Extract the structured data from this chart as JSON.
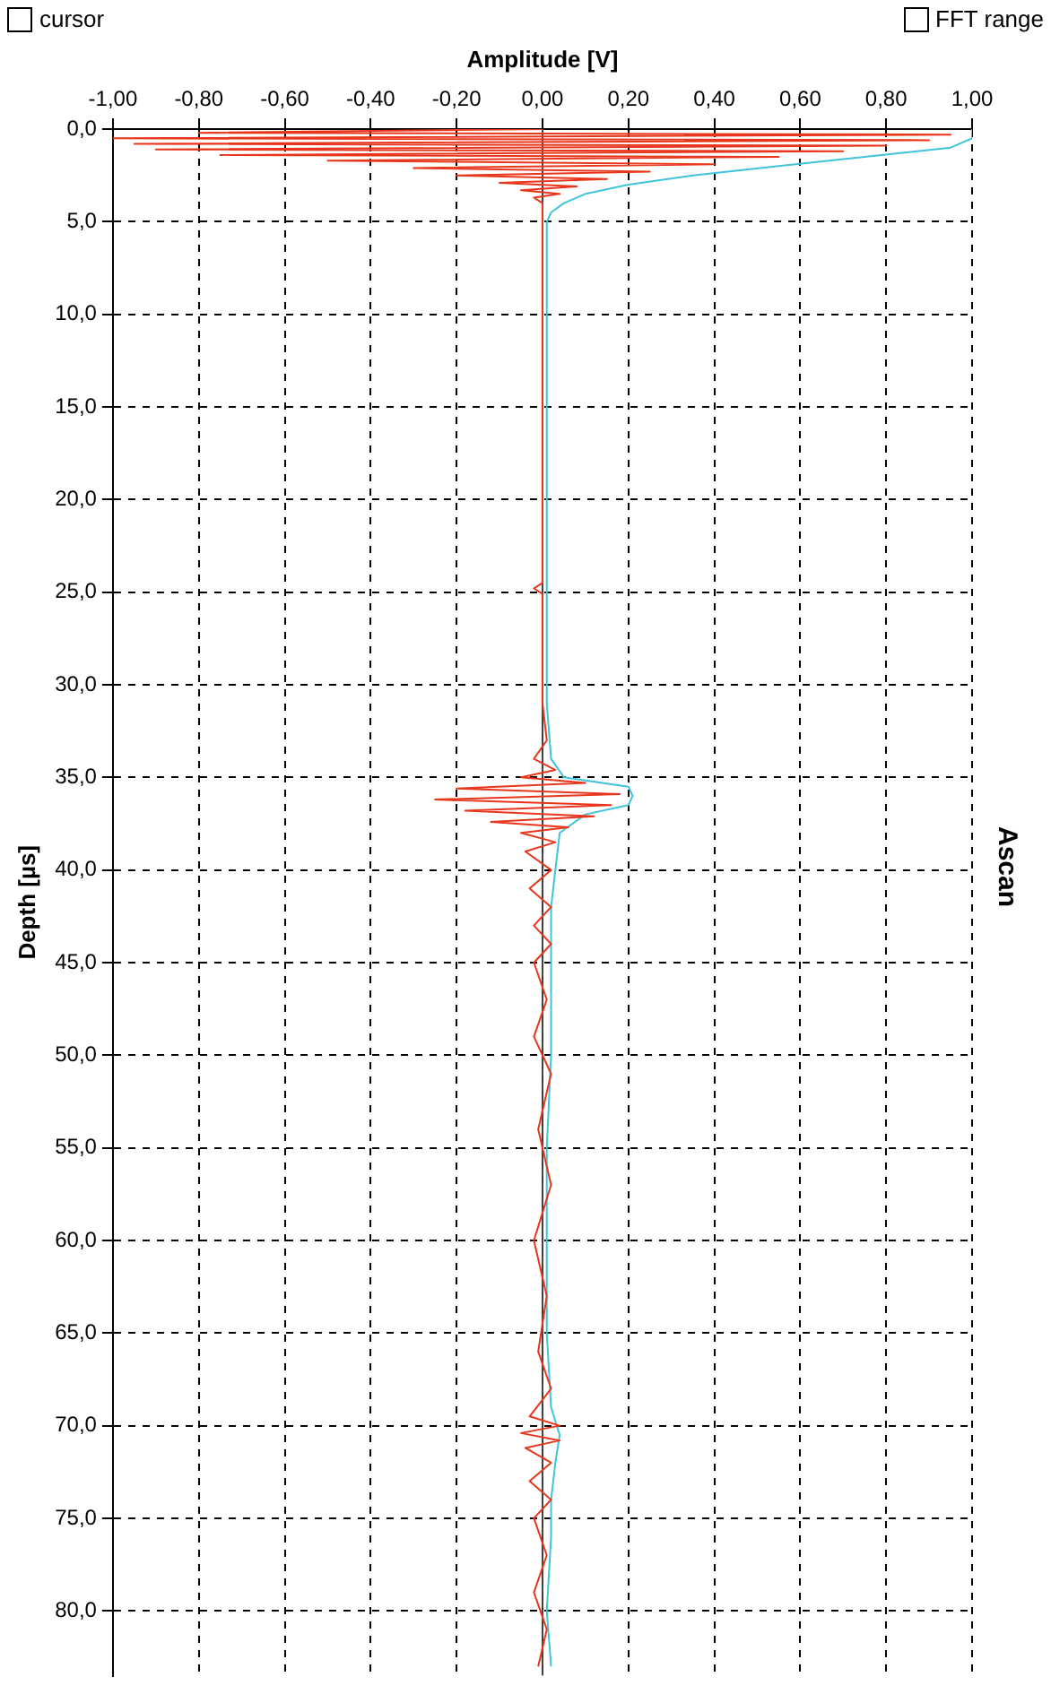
{
  "chart_data": {
    "type": "line",
    "title": "Ascan",
    "xlabel": "Amplitude [V]",
    "ylabel": "Depth [µs]",
    "annotations": [
      "cursor",
      "FFT range"
    ],
    "ylim": [
      83.5,
      0
    ],
    "yticks": [
      {
        "value": 0,
        "label": "0,0"
      },
      {
        "value": 5,
        "label": "5,0"
      },
      {
        "value": 10,
        "label": "10,0"
      },
      {
        "value": 15,
        "label": "15,0"
      },
      {
        "value": 20,
        "label": "20,0"
      },
      {
        "value": 25,
        "label": "25,0"
      },
      {
        "value": 30,
        "label": "30,0"
      },
      {
        "value": 35,
        "label": "35,0"
      },
      {
        "value": 40,
        "label": "40,0"
      },
      {
        "value": 45,
        "label": "45,0"
      },
      {
        "value": 50,
        "label": "50,0"
      },
      {
        "value": 55,
        "label": "55,0"
      },
      {
        "value": 60,
        "label": "60,0"
      },
      {
        "value": 65,
        "label": "65,0"
      },
      {
        "value": 70,
        "label": "70,0"
      },
      {
        "value": 75,
        "label": "75,0"
      },
      {
        "value": 80,
        "label": "80,0"
      }
    ],
    "xlim": [
      -1,
      1
    ],
    "xticks": [
      {
        "value": -1,
        "label": "-1,00"
      },
      {
        "value": -0.8,
        "label": "-0,80"
      },
      {
        "value": -0.6,
        "label": "-0,60"
      },
      {
        "value": -0.4,
        "label": "-0,40"
      },
      {
        "value": -0.2,
        "label": "-0,20"
      },
      {
        "value": 0,
        "label": "0,00"
      },
      {
        "value": 0.2,
        "label": "0,20"
      },
      {
        "value": 0.4,
        "label": "0,40"
      },
      {
        "value": 0.6,
        "label": "0,60"
      },
      {
        "value": 0.8,
        "label": "0,80"
      },
      {
        "value": 1,
        "label": "1,00"
      }
    ],
    "grid": true,
    "marker": "none",
    "line_style": "solid",
    "ref_lines": [
      {
        "axis": "x",
        "value": 0,
        "color": "#404040"
      }
    ],
    "series": [
      {
        "color": "#e8361c",
        "values": [
          0,
          0.2,
          0.3,
          0.5,
          0.6,
          0.8,
          0.9,
          1.1,
          1.2,
          1.4,
          1.5,
          1.7,
          1.9,
          2.1,
          2.3,
          2.5,
          2.7,
          2.9,
          3.1,
          3.3,
          3.5,
          3.7,
          4,
          24.5,
          24.8,
          25.1,
          31,
          33,
          34,
          34.6,
          35,
          35.3,
          35.6,
          35.9,
          36.2,
          36.5,
          36.8,
          37.1,
          37.4,
          37.7,
          38,
          38.5,
          39,
          40,
          41,
          42,
          43,
          44,
          45,
          47,
          49,
          51,
          54,
          57,
          60,
          63,
          66,
          68,
          69.5,
          70,
          70.4,
          70.8,
          71.2,
          72,
          73,
          74,
          75,
          77,
          79,
          81,
          83
        ],
        "x": [
          0,
          -0.8,
          0.95,
          -1.0,
          0.9,
          -0.95,
          0.8,
          -0.9,
          0.7,
          -0.75,
          0.55,
          -0.5,
          0.4,
          -0.3,
          0.25,
          -0.2,
          0.15,
          -0.1,
          0.08,
          -0.05,
          0.04,
          -0.02,
          0,
          0,
          -0.02,
          0,
          0,
          0.01,
          -0.02,
          0.03,
          -0.05,
          0.1,
          -0.2,
          0.18,
          -0.25,
          0.16,
          -0.18,
          0.12,
          -0.12,
          0.06,
          -0.05,
          0.03,
          -0.04,
          0.02,
          -0.03,
          0.02,
          -0.02,
          0.02,
          -0.02,
          0.01,
          -0.02,
          0.02,
          -0.01,
          0.02,
          -0.02,
          0.01,
          -0.01,
          0.02,
          -0.03,
          0.04,
          -0.05,
          0.04,
          -0.04,
          0.02,
          -0.03,
          0.02,
          -0.02,
          0.01,
          -0.02,
          0.01,
          -0.01
        ]
      },
      {
        "color": "#3fc4dc",
        "values": [
          0,
          0.5,
          1,
          1.5,
          2,
          2.5,
          3,
          3.5,
          4,
          4.5,
          5,
          31,
          34,
          35,
          35.5,
          36,
          36.5,
          37,
          38,
          40,
          42,
          50,
          55,
          65,
          69,
          70.5,
          72,
          74,
          76,
          80,
          83
        ],
        "x": [
          1.0,
          1.0,
          0.95,
          0.75,
          0.55,
          0.35,
          0.2,
          0.1,
          0.05,
          0.02,
          0.01,
          0.01,
          0.02,
          0.05,
          0.2,
          0.21,
          0.2,
          0.1,
          0.04,
          0.03,
          0.02,
          0.02,
          0.01,
          0.01,
          0.02,
          0.04,
          0.03,
          0.02,
          0.02,
          0.01,
          0.02
        ]
      }
    ]
  }
}
